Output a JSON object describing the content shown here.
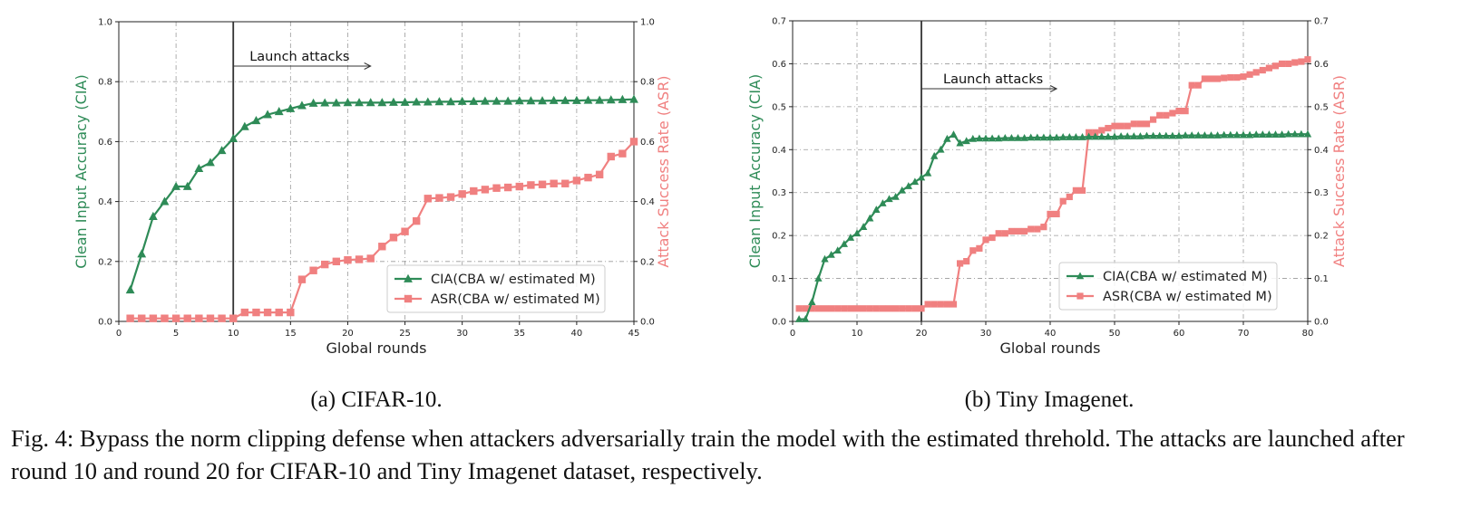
{
  "chart_data": [
    {
      "type": "line",
      "xlabel": "Global rounds",
      "ylabel_left": "Clean Input Accuracy (CIA)",
      "ylabel_right": "Attack Success Rate (ASR)",
      "xlim": [
        0,
        45
      ],
      "ylim_left": [
        0.0,
        1.0
      ],
      "ylim_right": [
        0.0,
        1.0
      ],
      "x_ticks": [
        0,
        5,
        10,
        15,
        20,
        25,
        30,
        35,
        40,
        45
      ],
      "y_ticks_left": [
        0.0,
        0.2,
        0.4,
        0.6,
        0.8,
        1.0
      ],
      "y_ticks_right": [
        0.0,
        0.2,
        0.4,
        0.6,
        0.8,
        1.0
      ],
      "grid": true,
      "legend_position": "lower-right",
      "annotation": {
        "text": "Launch attacks",
        "vline_x": 10
      },
      "x": [
        1,
        2,
        3,
        4,
        5,
        6,
        7,
        8,
        9,
        10,
        11,
        12,
        13,
        14,
        15,
        16,
        17,
        18,
        19,
        20,
        21,
        22,
        23,
        24,
        25,
        26,
        27,
        28,
        29,
        30,
        31,
        32,
        33,
        34,
        35,
        36,
        37,
        38,
        39,
        40,
        41,
        42,
        43,
        44,
        45
      ],
      "series": [
        {
          "name": "CIA(CBA w/ estimated M)",
          "axis": "left",
          "color": "#2e8b57",
          "marker": "triangle",
          "values": [
            0.105,
            0.225,
            0.35,
            0.4,
            0.45,
            0.45,
            0.51,
            0.53,
            0.57,
            0.61,
            0.65,
            0.67,
            0.69,
            0.7,
            0.71,
            0.72,
            0.728,
            0.729,
            0.729,
            0.73,
            0.73,
            0.73,
            0.73,
            0.731,
            0.731,
            0.732,
            0.732,
            0.733,
            0.733,
            0.734,
            0.734,
            0.735,
            0.735,
            0.735,
            0.736,
            0.736,
            0.736,
            0.737,
            0.737,
            0.737,
            0.738,
            0.738,
            0.739,
            0.74,
            0.741
          ]
        },
        {
          "name": "ASR(CBA w/ estimated M)",
          "axis": "right",
          "color": "#f08080",
          "marker": "square",
          "values": [
            0.01,
            0.01,
            0.01,
            0.01,
            0.01,
            0.01,
            0.01,
            0.01,
            0.01,
            0.01,
            0.03,
            0.03,
            0.03,
            0.03,
            0.03,
            0.14,
            0.17,
            0.19,
            0.2,
            0.205,
            0.207,
            0.21,
            0.25,
            0.28,
            0.3,
            0.335,
            0.41,
            0.412,
            0.415,
            0.425,
            0.435,
            0.44,
            0.445,
            0.447,
            0.45,
            0.455,
            0.457,
            0.46,
            0.46,
            0.47,
            0.48,
            0.49,
            0.55,
            0.56,
            0.6
          ]
        }
      ]
    },
    {
      "type": "line",
      "xlabel": "Global rounds",
      "ylabel_left": "Clean Input Accuracy (CIA)",
      "ylabel_right": "Attack Success Rate (ASR)",
      "xlim": [
        0,
        80
      ],
      "ylim_left": [
        0.0,
        0.7
      ],
      "ylim_right": [
        0.0,
        0.7
      ],
      "x_ticks": [
        0,
        10,
        20,
        30,
        40,
        50,
        60,
        70,
        80
      ],
      "y_ticks_left": [
        0.0,
        0.1,
        0.2,
        0.3,
        0.4,
        0.5,
        0.6,
        0.7
      ],
      "y_ticks_right": [
        0.0,
        0.1,
        0.2,
        0.3,
        0.4,
        0.5,
        0.6,
        0.7
      ],
      "grid": true,
      "legend_position": "lower-right",
      "annotation": {
        "text": "Launch attacks",
        "vline_x": 20
      },
      "x": [
        1,
        2,
        3,
        4,
        5,
        6,
        7,
        8,
        9,
        10,
        11,
        12,
        13,
        14,
        15,
        16,
        17,
        18,
        19,
        20,
        21,
        22,
        23,
        24,
        25,
        26,
        27,
        28,
        29,
        30,
        31,
        32,
        33,
        34,
        35,
        36,
        37,
        38,
        39,
        40,
        41,
        42,
        43,
        44,
        45,
        46,
        47,
        48,
        49,
        50,
        51,
        52,
        53,
        54,
        55,
        56,
        57,
        58,
        59,
        60,
        61,
        62,
        63,
        64,
        65,
        66,
        67,
        68,
        69,
        70,
        71,
        72,
        73,
        74,
        75,
        76,
        77,
        78,
        79,
        80
      ],
      "series": [
        {
          "name": "CIA(CBA w/ estimated M)",
          "axis": "left",
          "color": "#2e8b57",
          "marker": "triangle",
          "values": [
            0.005,
            0.005,
            0.045,
            0.1,
            0.145,
            0.155,
            0.165,
            0.18,
            0.195,
            0.205,
            0.22,
            0.24,
            0.26,
            0.275,
            0.285,
            0.29,
            0.305,
            0.315,
            0.325,
            0.335,
            0.345,
            0.385,
            0.4,
            0.425,
            0.435,
            0.415,
            0.42,
            0.425,
            0.426,
            0.426,
            0.426,
            0.426,
            0.427,
            0.427,
            0.427,
            0.427,
            0.428,
            0.428,
            0.428,
            0.428,
            0.428,
            0.429,
            0.429,
            0.429,
            0.429,
            0.43,
            0.43,
            0.43,
            0.43,
            0.43,
            0.431,
            0.431,
            0.431,
            0.431,
            0.432,
            0.432,
            0.432,
            0.432,
            0.432,
            0.432,
            0.433,
            0.433,
            0.433,
            0.433,
            0.433,
            0.433,
            0.434,
            0.434,
            0.434,
            0.434,
            0.434,
            0.435,
            0.435,
            0.435,
            0.435,
            0.435,
            0.436,
            0.436,
            0.436,
            0.436
          ]
        },
        {
          "name": "ASR(CBA w/ estimated M)",
          "axis": "right",
          "color": "#f08080",
          "marker": "square",
          "values": [
            0.03,
            0.03,
            0.03,
            0.03,
            0.03,
            0.03,
            0.03,
            0.03,
            0.03,
            0.03,
            0.03,
            0.03,
            0.03,
            0.03,
            0.03,
            0.03,
            0.03,
            0.03,
            0.03,
            0.03,
            0.04,
            0.04,
            0.04,
            0.04,
            0.04,
            0.135,
            0.14,
            0.165,
            0.17,
            0.19,
            0.195,
            0.205,
            0.205,
            0.21,
            0.21,
            0.21,
            0.215,
            0.215,
            0.22,
            0.25,
            0.25,
            0.28,
            0.29,
            0.305,
            0.305,
            0.44,
            0.44,
            0.445,
            0.45,
            0.455,
            0.455,
            0.455,
            0.46,
            0.46,
            0.46,
            0.47,
            0.48,
            0.48,
            0.485,
            0.49,
            0.49,
            0.55,
            0.55,
            0.565,
            0.565,
            0.565,
            0.567,
            0.568,
            0.568,
            0.57,
            0.575,
            0.58,
            0.585,
            0.59,
            0.595,
            0.6,
            0.6,
            0.603,
            0.605,
            0.61
          ]
        }
      ]
    }
  ],
  "captions": {
    "a": "(a) CIFAR-10.",
    "b": "(b) Tiny Imagenet.",
    "figure": "Fig. 4: Bypass the norm clipping defense when attackers adversarially train the model with the estimated threhold. The attacks are launched after round 10 and round 20 for CIFAR-10 and Tiny Imagenet dataset, respectively."
  }
}
